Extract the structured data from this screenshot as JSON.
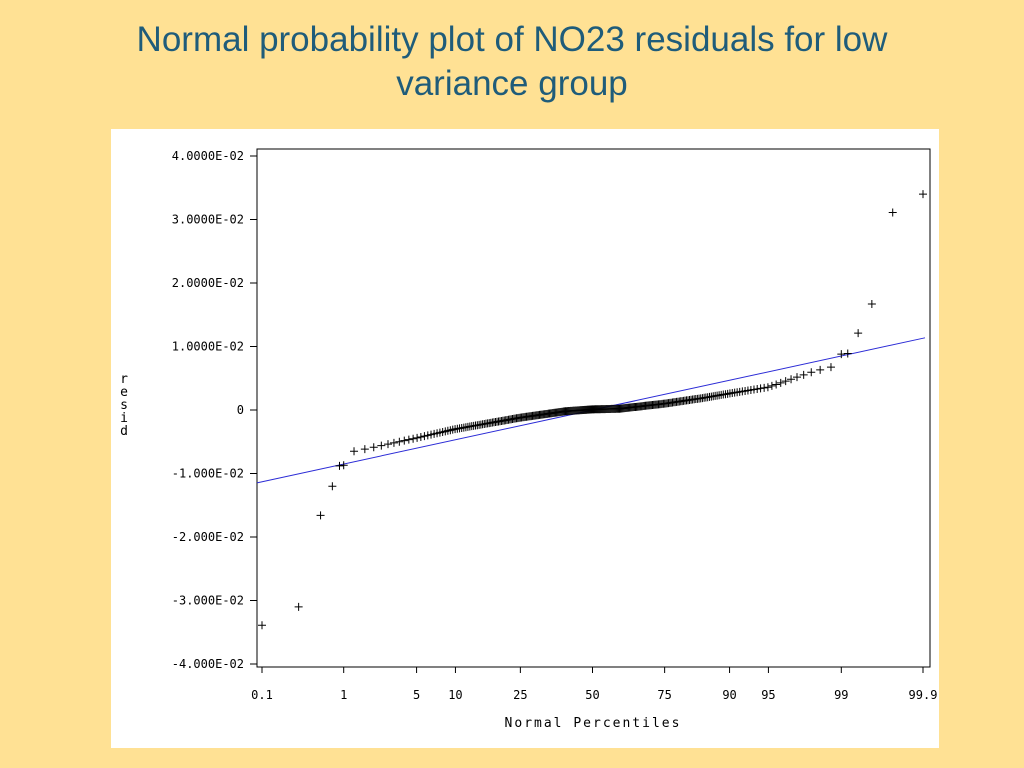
{
  "slide": {
    "title_line1": "Normal probability plot of NO23 residuals for low",
    "title_line2": "variance group",
    "background_color": "#FFE194",
    "title_color": "#1F5C7A"
  },
  "chart_data": {
    "type": "scatter",
    "title": "Normal probability plot of NO23 residuals for low variance group",
    "xlabel": "Normal Percentiles",
    "ylabel": "resid",
    "ylim": [
      -0.04,
      0.04
    ],
    "xlim_percentile": [
      0.1,
      99.9
    ],
    "y_ticks": [
      {
        "value": 0.04,
        "label": "4.0000E-02"
      },
      {
        "value": 0.03,
        "label": "3.0000E-02"
      },
      {
        "value": 0.02,
        "label": "2.0000E-02"
      },
      {
        "value": 0.01,
        "label": "1.0000E-02"
      },
      {
        "value": 0.0,
        "label": "0"
      },
      {
        "value": -0.01,
        "label": "-1.000E-02"
      },
      {
        "value": -0.02,
        "label": "-2.000E-02"
      },
      {
        "value": -0.03,
        "label": "-3.000E-02"
      },
      {
        "value": -0.04,
        "label": "-4.000E-02"
      }
    ],
    "x_ticks": [
      {
        "value": 0.1,
        "label": "0.1"
      },
      {
        "value": 1,
        "label": "1"
      },
      {
        "value": 5,
        "label": "5"
      },
      {
        "value": 10,
        "label": "10"
      },
      {
        "value": 25,
        "label": "25"
      },
      {
        "value": 50,
        "label": "50"
      },
      {
        "value": 75,
        "label": "75"
      },
      {
        "value": 90,
        "label": "90"
      },
      {
        "value": 95,
        "label": "95"
      },
      {
        "value": 99,
        "label": "99"
      },
      {
        "value": 99.9,
        "label": "99.9"
      }
    ],
    "reference_line": {
      "color": "#2b2bd6",
      "start": {
        "percentile": 0.1,
        "value": -0.0113
      },
      "end": {
        "percentile": 99.9,
        "value": 0.0113
      }
    },
    "outlier_points": [
      {
        "percentile": 0.1,
        "value": -0.0339
      },
      {
        "percentile": 0.3,
        "value": -0.031
      },
      {
        "percentile": 0.55,
        "value": -0.0166
      },
      {
        "percentile": 0.75,
        "value": -0.012
      },
      {
        "percentile": 0.9,
        "value": -0.0088
      },
      {
        "percentile": 1.0,
        "value": -0.0087
      },
      {
        "percentile": 99.0,
        "value": 0.0088
      },
      {
        "percentile": 99.15,
        "value": 0.0089
      },
      {
        "percentile": 99.35,
        "value": 0.0121
      },
      {
        "percentile": 99.55,
        "value": 0.0167
      },
      {
        "percentile": 99.75,
        "value": 0.0311
      },
      {
        "percentile": 99.9,
        "value": 0.034
      }
    ],
    "body_curve": [
      {
        "percentile": 1.1,
        "value": -0.0067
      },
      {
        "percentile": 2,
        "value": -0.0059
      },
      {
        "percentile": 5,
        "value": -0.0044
      },
      {
        "percentile": 10,
        "value": -0.003
      },
      {
        "percentile": 25,
        "value": -0.0012
      },
      {
        "percentile": 40,
        "value": -0.0002
      },
      {
        "percentile": 50,
        "value": 0.0001
      },
      {
        "percentile": 60,
        "value": 0.0002
      },
      {
        "percentile": 75,
        "value": 0.001
      },
      {
        "percentile": 85,
        "value": 0.0019
      },
      {
        "percentile": 90,
        "value": 0.0026
      },
      {
        "percentile": 95,
        "value": 0.0036
      },
      {
        "percentile": 98,
        "value": 0.006
      },
      {
        "percentile": 98.9,
        "value": 0.007
      }
    ],
    "n_body_points": 260
  }
}
